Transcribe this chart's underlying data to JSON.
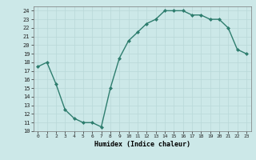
{
  "x": [
    0,
    1,
    2,
    3,
    4,
    5,
    6,
    7,
    8,
    9,
    10,
    11,
    12,
    13,
    14,
    15,
    16,
    17,
    18,
    19,
    20,
    21,
    22,
    23
  ],
  "y": [
    17.5,
    18.0,
    15.5,
    12.5,
    11.5,
    11.0,
    11.0,
    10.5,
    15.0,
    18.5,
    20.5,
    21.5,
    22.5,
    23.0,
    24.0,
    24.0,
    24.0,
    23.5,
    23.5,
    23.0,
    23.0,
    22.0,
    19.5,
    19.0
  ],
  "xlabel": "Humidex (Indice chaleur)",
  "ylim": [
    10,
    24.5
  ],
  "xlim": [
    -0.5,
    23.5
  ],
  "yticks": [
    10,
    11,
    12,
    13,
    14,
    15,
    16,
    17,
    18,
    19,
    20,
    21,
    22,
    23,
    24
  ],
  "xticks": [
    0,
    1,
    2,
    3,
    4,
    5,
    6,
    7,
    8,
    9,
    10,
    11,
    12,
    13,
    14,
    15,
    16,
    17,
    18,
    19,
    20,
    21,
    22,
    23
  ],
  "line_color": "#2e7d6e",
  "marker_color": "#2e7d6e",
  "bg_color": "#cce8e8",
  "grid_color": "#b8d8d8",
  "title": ""
}
